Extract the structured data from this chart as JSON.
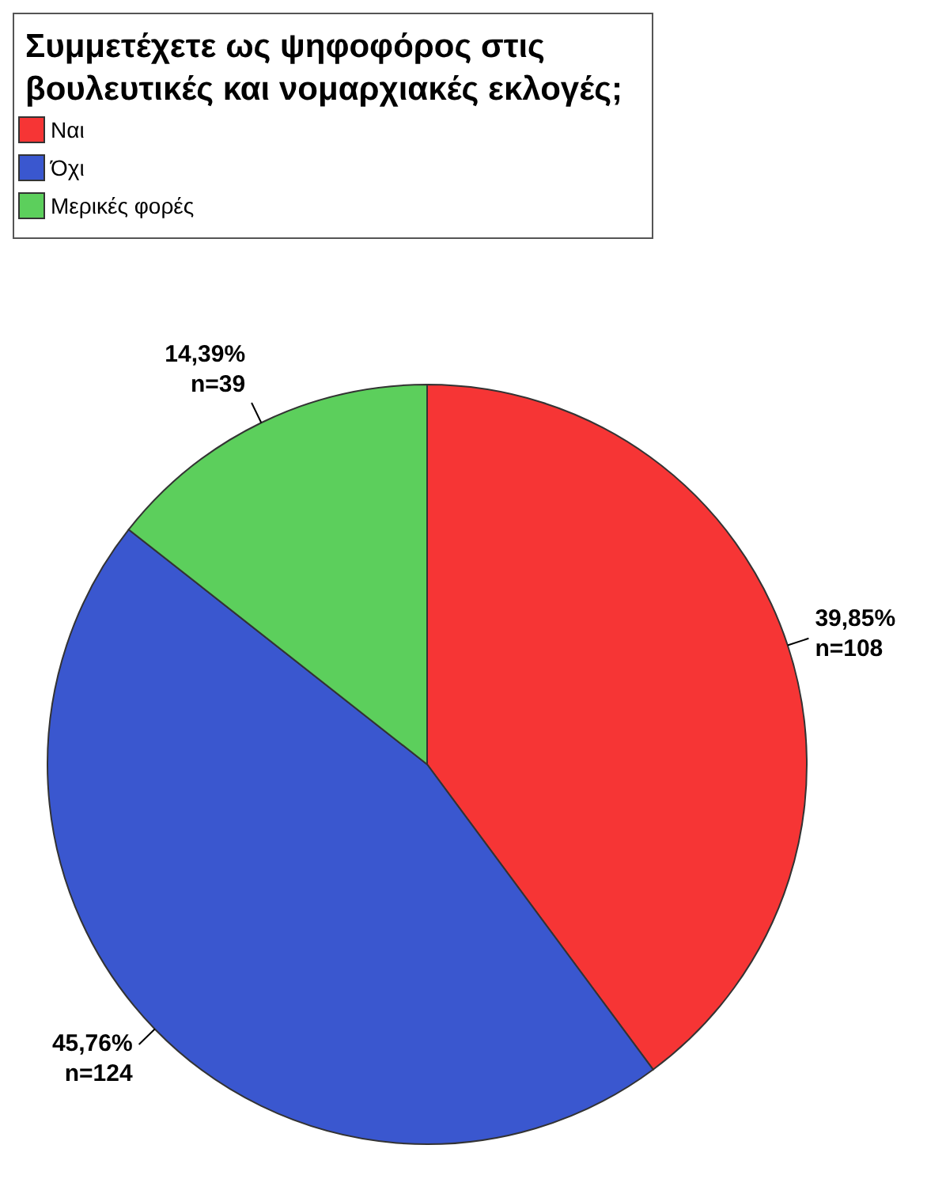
{
  "chart_data": {
    "type": "pie",
    "legend_title": "Συμμετέχετε  ως ψηφοφόρος στις βουλευτικές και νομαρχιακές εκλογές;",
    "legend": "top left",
    "categories": [
      "Ναι",
      "Όχι",
      "Μερικές φορές"
    ],
    "values": [
      108,
      124,
      39
    ],
    "colors": [
      "#f63535",
      "#3a57cf",
      "#5ccf5c"
    ],
    "value_labels": [
      "39,85%\nn=108",
      "45,76%\nn=124",
      "14,39%\nn=39"
    ]
  }
}
